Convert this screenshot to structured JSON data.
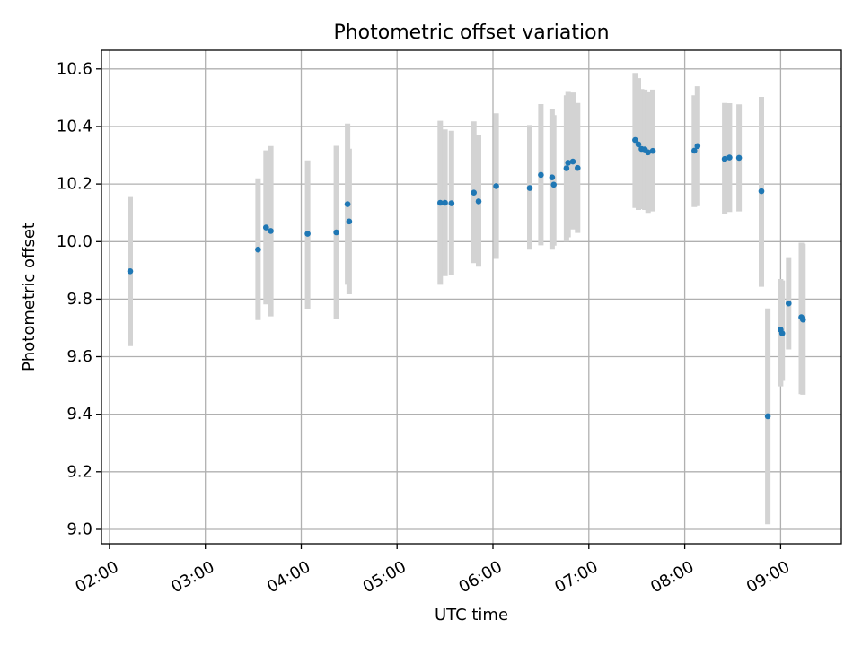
{
  "chart_data": {
    "type": "scatter",
    "title": "Photometric offset variation",
    "xlabel": "UTC time",
    "ylabel": "Photometric offset",
    "xlim": [
      "01:55",
      "09:38"
    ],
    "ylim": [
      8.95,
      10.665
    ],
    "xticks": [
      "02:00",
      "03:00",
      "04:00",
      "05:00",
      "06:00",
      "07:00",
      "08:00",
      "09:00"
    ],
    "yticks": [
      "9.0",
      "9.2",
      "9.4",
      "9.6",
      "9.8",
      "10.0",
      "10.2",
      "10.4",
      "10.6"
    ],
    "grid": true,
    "colors": {
      "point": "#1f77b4",
      "errorbar": "#d3d3d3",
      "grid": "#b0b0b0"
    },
    "points": [
      {
        "x": "02:13",
        "y": 9.897,
        "ylo": 9.637,
        "yhi": 10.155
      },
      {
        "x": "03:33",
        "y": 9.972,
        "ylo": 9.727,
        "yhi": 10.22
      },
      {
        "x": "03:38",
        "y": 10.049,
        "ylo": 9.782,
        "yhi": 10.317
      },
      {
        "x": "03:41",
        "y": 10.037,
        "ylo": 9.74,
        "yhi": 10.332
      },
      {
        "x": "04:04",
        "y": 10.027,
        "ylo": 9.767,
        "yhi": 10.282
      },
      {
        "x": "04:22",
        "y": 10.032,
        "ylo": 9.732,
        "yhi": 10.333
      },
      {
        "x": "04:29",
        "y": 10.13,
        "ylo": 9.85,
        "yhi": 10.41
      },
      {
        "x": "04:30",
        "y": 10.07,
        "ylo": 9.817,
        "yhi": 10.323
      },
      {
        "x": "05:27",
        "y": 10.135,
        "ylo": 9.85,
        "yhi": 10.42
      },
      {
        "x": "05:30",
        "y": 10.135,
        "ylo": 9.88,
        "yhi": 10.39
      },
      {
        "x": "05:34",
        "y": 10.133,
        "ylo": 9.883,
        "yhi": 10.385
      },
      {
        "x": "05:48",
        "y": 10.17,
        "ylo": 9.925,
        "yhi": 10.418
      },
      {
        "x": "05:51",
        "y": 10.14,
        "ylo": 9.913,
        "yhi": 10.37
      },
      {
        "x": "06:02",
        "y": 10.193,
        "ylo": 9.94,
        "yhi": 10.446
      },
      {
        "x": "06:23",
        "y": 10.186,
        "ylo": 9.972,
        "yhi": 10.405
      },
      {
        "x": "06:30",
        "y": 10.232,
        "ylo": 9.987,
        "yhi": 10.478
      },
      {
        "x": "06:37",
        "y": 10.223,
        "ylo": 9.972,
        "yhi": 10.46
      },
      {
        "x": "06:38",
        "y": 10.198,
        "ylo": 9.986,
        "yhi": 10.44
      },
      {
        "x": "06:46",
        "y": 10.255,
        "ylo": 10.0,
        "yhi": 10.508
      },
      {
        "x": "06:47",
        "y": 10.274,
        "ylo": 10.015,
        "yhi": 10.523
      },
      {
        "x": "06:50",
        "y": 10.278,
        "ylo": 10.042,
        "yhi": 10.518
      },
      {
        "x": "06:53",
        "y": 10.256,
        "ylo": 10.03,
        "yhi": 10.482
      },
      {
        "x": "07:29",
        "y": 10.353,
        "ylo": 10.117,
        "yhi": 10.586
      },
      {
        "x": "07:31",
        "y": 10.338,
        "ylo": 10.11,
        "yhi": 10.568
      },
      {
        "x": "07:33",
        "y": 10.322,
        "ylo": 10.113,
        "yhi": 10.53
      },
      {
        "x": "07:35",
        "y": 10.32,
        "ylo": 10.11,
        "yhi": 10.528
      },
      {
        "x": "07:37",
        "y": 10.31,
        "ylo": 10.1,
        "yhi": 10.522
      },
      {
        "x": "07:40",
        "y": 10.315,
        "ylo": 10.105,
        "yhi": 10.528
      },
      {
        "x": "08:06",
        "y": 10.316,
        "ylo": 10.12,
        "yhi": 10.508
      },
      {
        "x": "08:08",
        "y": 10.332,
        "ylo": 10.123,
        "yhi": 10.54
      },
      {
        "x": "08:25",
        "y": 10.287,
        "ylo": 10.095,
        "yhi": 10.482
      },
      {
        "x": "08:28",
        "y": 10.292,
        "ylo": 10.103,
        "yhi": 10.481
      },
      {
        "x": "08:34",
        "y": 10.291,
        "ylo": 10.105,
        "yhi": 10.477
      },
      {
        "x": "08:48",
        "y": 10.175,
        "ylo": 9.843,
        "yhi": 10.503
      },
      {
        "x": "08:52",
        "y": 9.393,
        "ylo": 9.018,
        "yhi": 9.768
      },
      {
        "x": "09:00",
        "y": 9.694,
        "ylo": 9.497,
        "yhi": 9.87
      },
      {
        "x": "09:01",
        "y": 9.681,
        "ylo": 9.516,
        "yhi": 9.865
      },
      {
        "x": "09:05",
        "y": 9.785,
        "ylo": 9.625,
        "yhi": 9.946
      },
      {
        "x": "09:13",
        "y": 9.737,
        "ylo": 9.47,
        "yhi": 9.996
      },
      {
        "x": "09:14",
        "y": 9.729,
        "ylo": 9.468,
        "yhi": 9.992
      }
    ]
  }
}
